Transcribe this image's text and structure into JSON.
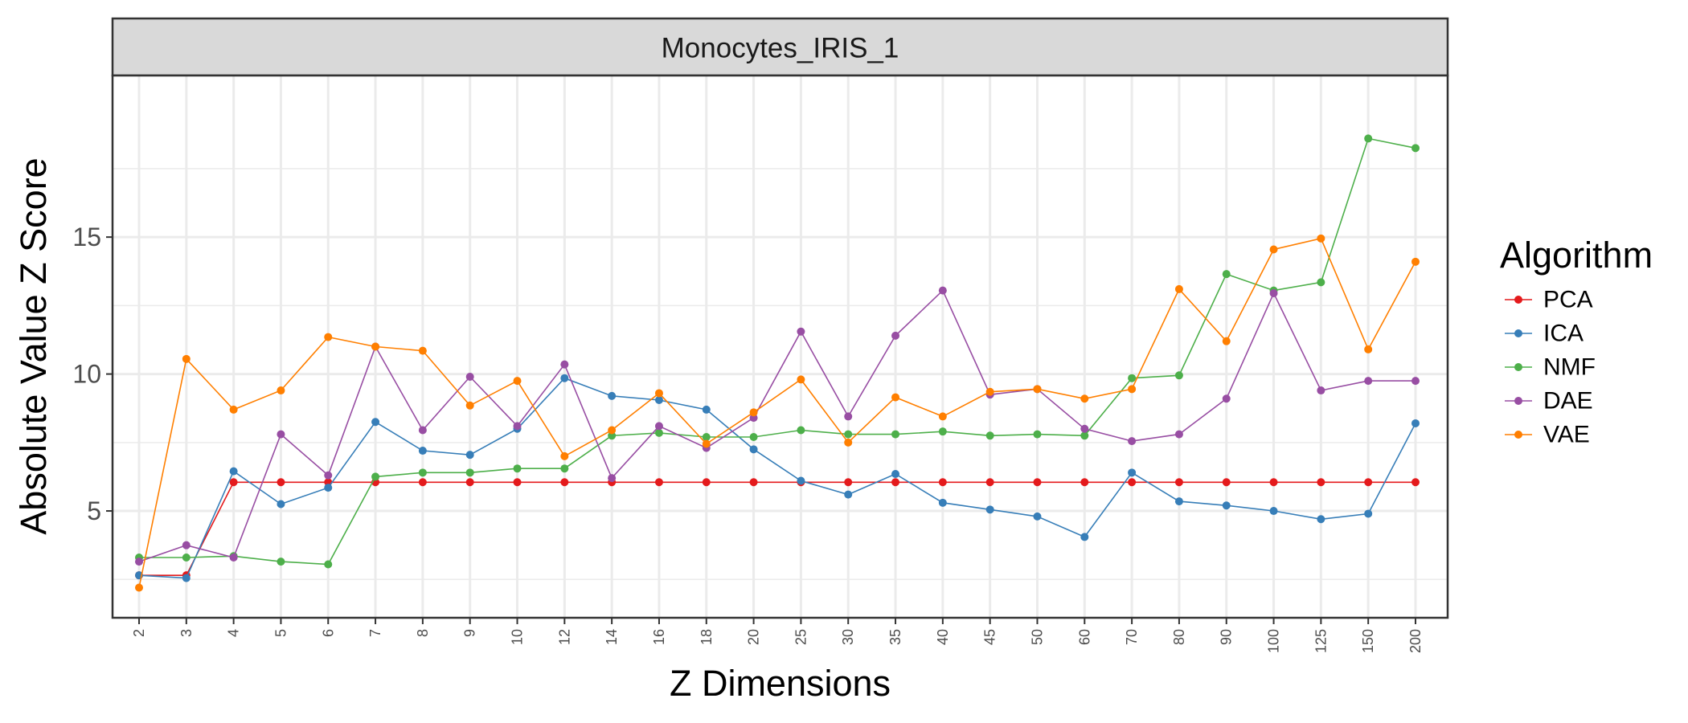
{
  "chart_data": {
    "type": "line",
    "facet_title": "Monocytes_IRIS_1",
    "xlabel": "Z Dimensions",
    "ylabel": "Absolute Value Z Score",
    "categories": [
      "2",
      "3",
      "4",
      "5",
      "6",
      "7",
      "8",
      "9",
      "10",
      "12",
      "14",
      "16",
      "18",
      "20",
      "25",
      "30",
      "35",
      "40",
      "45",
      "50",
      "60",
      "70",
      "80",
      "90",
      "100",
      "125",
      "150",
      "200"
    ],
    "ylim": [
      1.1,
      20.9
    ],
    "yticks": [
      5,
      10,
      15
    ],
    "grid": true,
    "legend": {
      "title": "Algorithm",
      "position": "right"
    },
    "series": [
      {
        "name": "PCA",
        "color": "#E41A1C",
        "values": [
          2.65,
          2.65,
          6.05,
          6.05,
          6.05,
          6.05,
          6.05,
          6.05,
          6.05,
          6.05,
          6.05,
          6.05,
          6.05,
          6.05,
          6.05,
          6.05,
          6.05,
          6.05,
          6.05,
          6.05,
          6.05,
          6.05,
          6.05,
          6.05,
          6.05,
          6.05,
          6.05,
          6.05
        ]
      },
      {
        "name": "ICA",
        "color": "#377EB8",
        "values": [
          2.65,
          2.55,
          6.45,
          5.25,
          5.85,
          8.25,
          7.2,
          7.05,
          8.0,
          9.85,
          9.2,
          9.05,
          8.7,
          7.25,
          6.1,
          5.6,
          6.35,
          5.3,
          5.05,
          4.8,
          4.05,
          6.4,
          5.35,
          5.2,
          5.0,
          4.7,
          4.9,
          8.2
        ]
      },
      {
        "name": "NMF",
        "color": "#4DAF4A",
        "values": [
          3.3,
          3.3,
          3.35,
          3.15,
          3.05,
          6.25,
          6.4,
          6.4,
          6.55,
          6.55,
          7.75,
          7.85,
          7.7,
          7.7,
          7.95,
          7.8,
          7.8,
          7.9,
          7.75,
          7.8,
          7.75,
          9.85,
          9.95,
          13.65,
          13.05,
          13.35,
          18.6,
          18.25
        ]
      },
      {
        "name": "DAE",
        "color": "#984EA3",
        "values": [
          3.15,
          3.75,
          3.3,
          7.8,
          6.3,
          11.0,
          7.95,
          9.9,
          8.1,
          10.35,
          6.2,
          8.1,
          7.3,
          8.4,
          11.55,
          8.45,
          11.4,
          13.05,
          9.25,
          9.45,
          8.0,
          7.55,
          7.8,
          9.1,
          12.95,
          9.4,
          9.75,
          9.75
        ]
      },
      {
        "name": "VAE",
        "color": "#FF7F00",
        "values": [
          2.2,
          10.55,
          8.7,
          9.4,
          11.35,
          11.0,
          10.85,
          8.85,
          9.75,
          7.0,
          7.95,
          9.3,
          7.45,
          8.6,
          9.8,
          7.5,
          9.15,
          8.45,
          9.35,
          9.45,
          9.1,
          9.45,
          13.1,
          11.2,
          14.55,
          14.95,
          10.9,
          14.1
        ]
      }
    ]
  }
}
